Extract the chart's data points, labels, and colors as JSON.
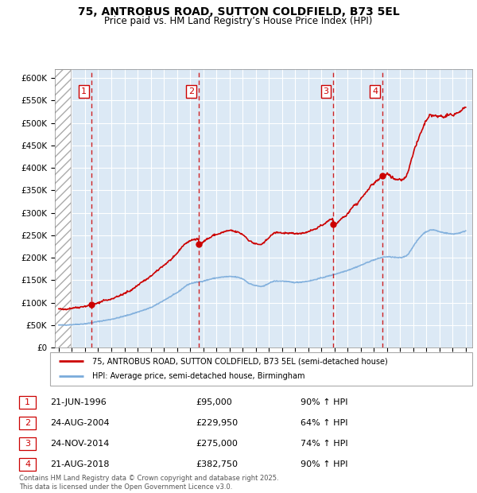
{
  "title": "75, ANTROBUS ROAD, SUTTON COLDFIELD, B73 5EL",
  "subtitle": "Price paid vs. HM Land Registry’s House Price Index (HPI)",
  "sales": [
    {
      "date_dec": 1996.47,
      "price": 95000,
      "label": "1",
      "date_str": "21-JUN-1996",
      "pct": "90%"
    },
    {
      "date_dec": 2004.65,
      "price": 229950,
      "label": "2",
      "date_str": "24-AUG-2004",
      "pct": "64%"
    },
    {
      "date_dec": 2014.9,
      "price": 275000,
      "label": "3",
      "date_str": "24-NOV-2014",
      "pct": "74%"
    },
    {
      "date_dec": 2018.65,
      "price": 382750,
      "label": "4",
      "date_str": "21-AUG-2018",
      "pct": "90%"
    }
  ],
  "legend_property": "75, ANTROBUS ROAD, SUTTON COLDFIELD, B73 5EL (semi-detached house)",
  "legend_hpi": "HPI: Average price, semi-detached house, Birmingham",
  "footer": "Contains HM Land Registry data © Crown copyright and database right 2025.\nThis data is licensed under the Open Government Licence v3.0.",
  "xmin": 1993.7,
  "xmax": 2025.5,
  "ymin": 0,
  "ymax": 620000,
  "property_color": "#cc0000",
  "hpi_color": "#7aabdb",
  "background_color": "#dce9f5",
  "grid_color": "#ffffff"
}
